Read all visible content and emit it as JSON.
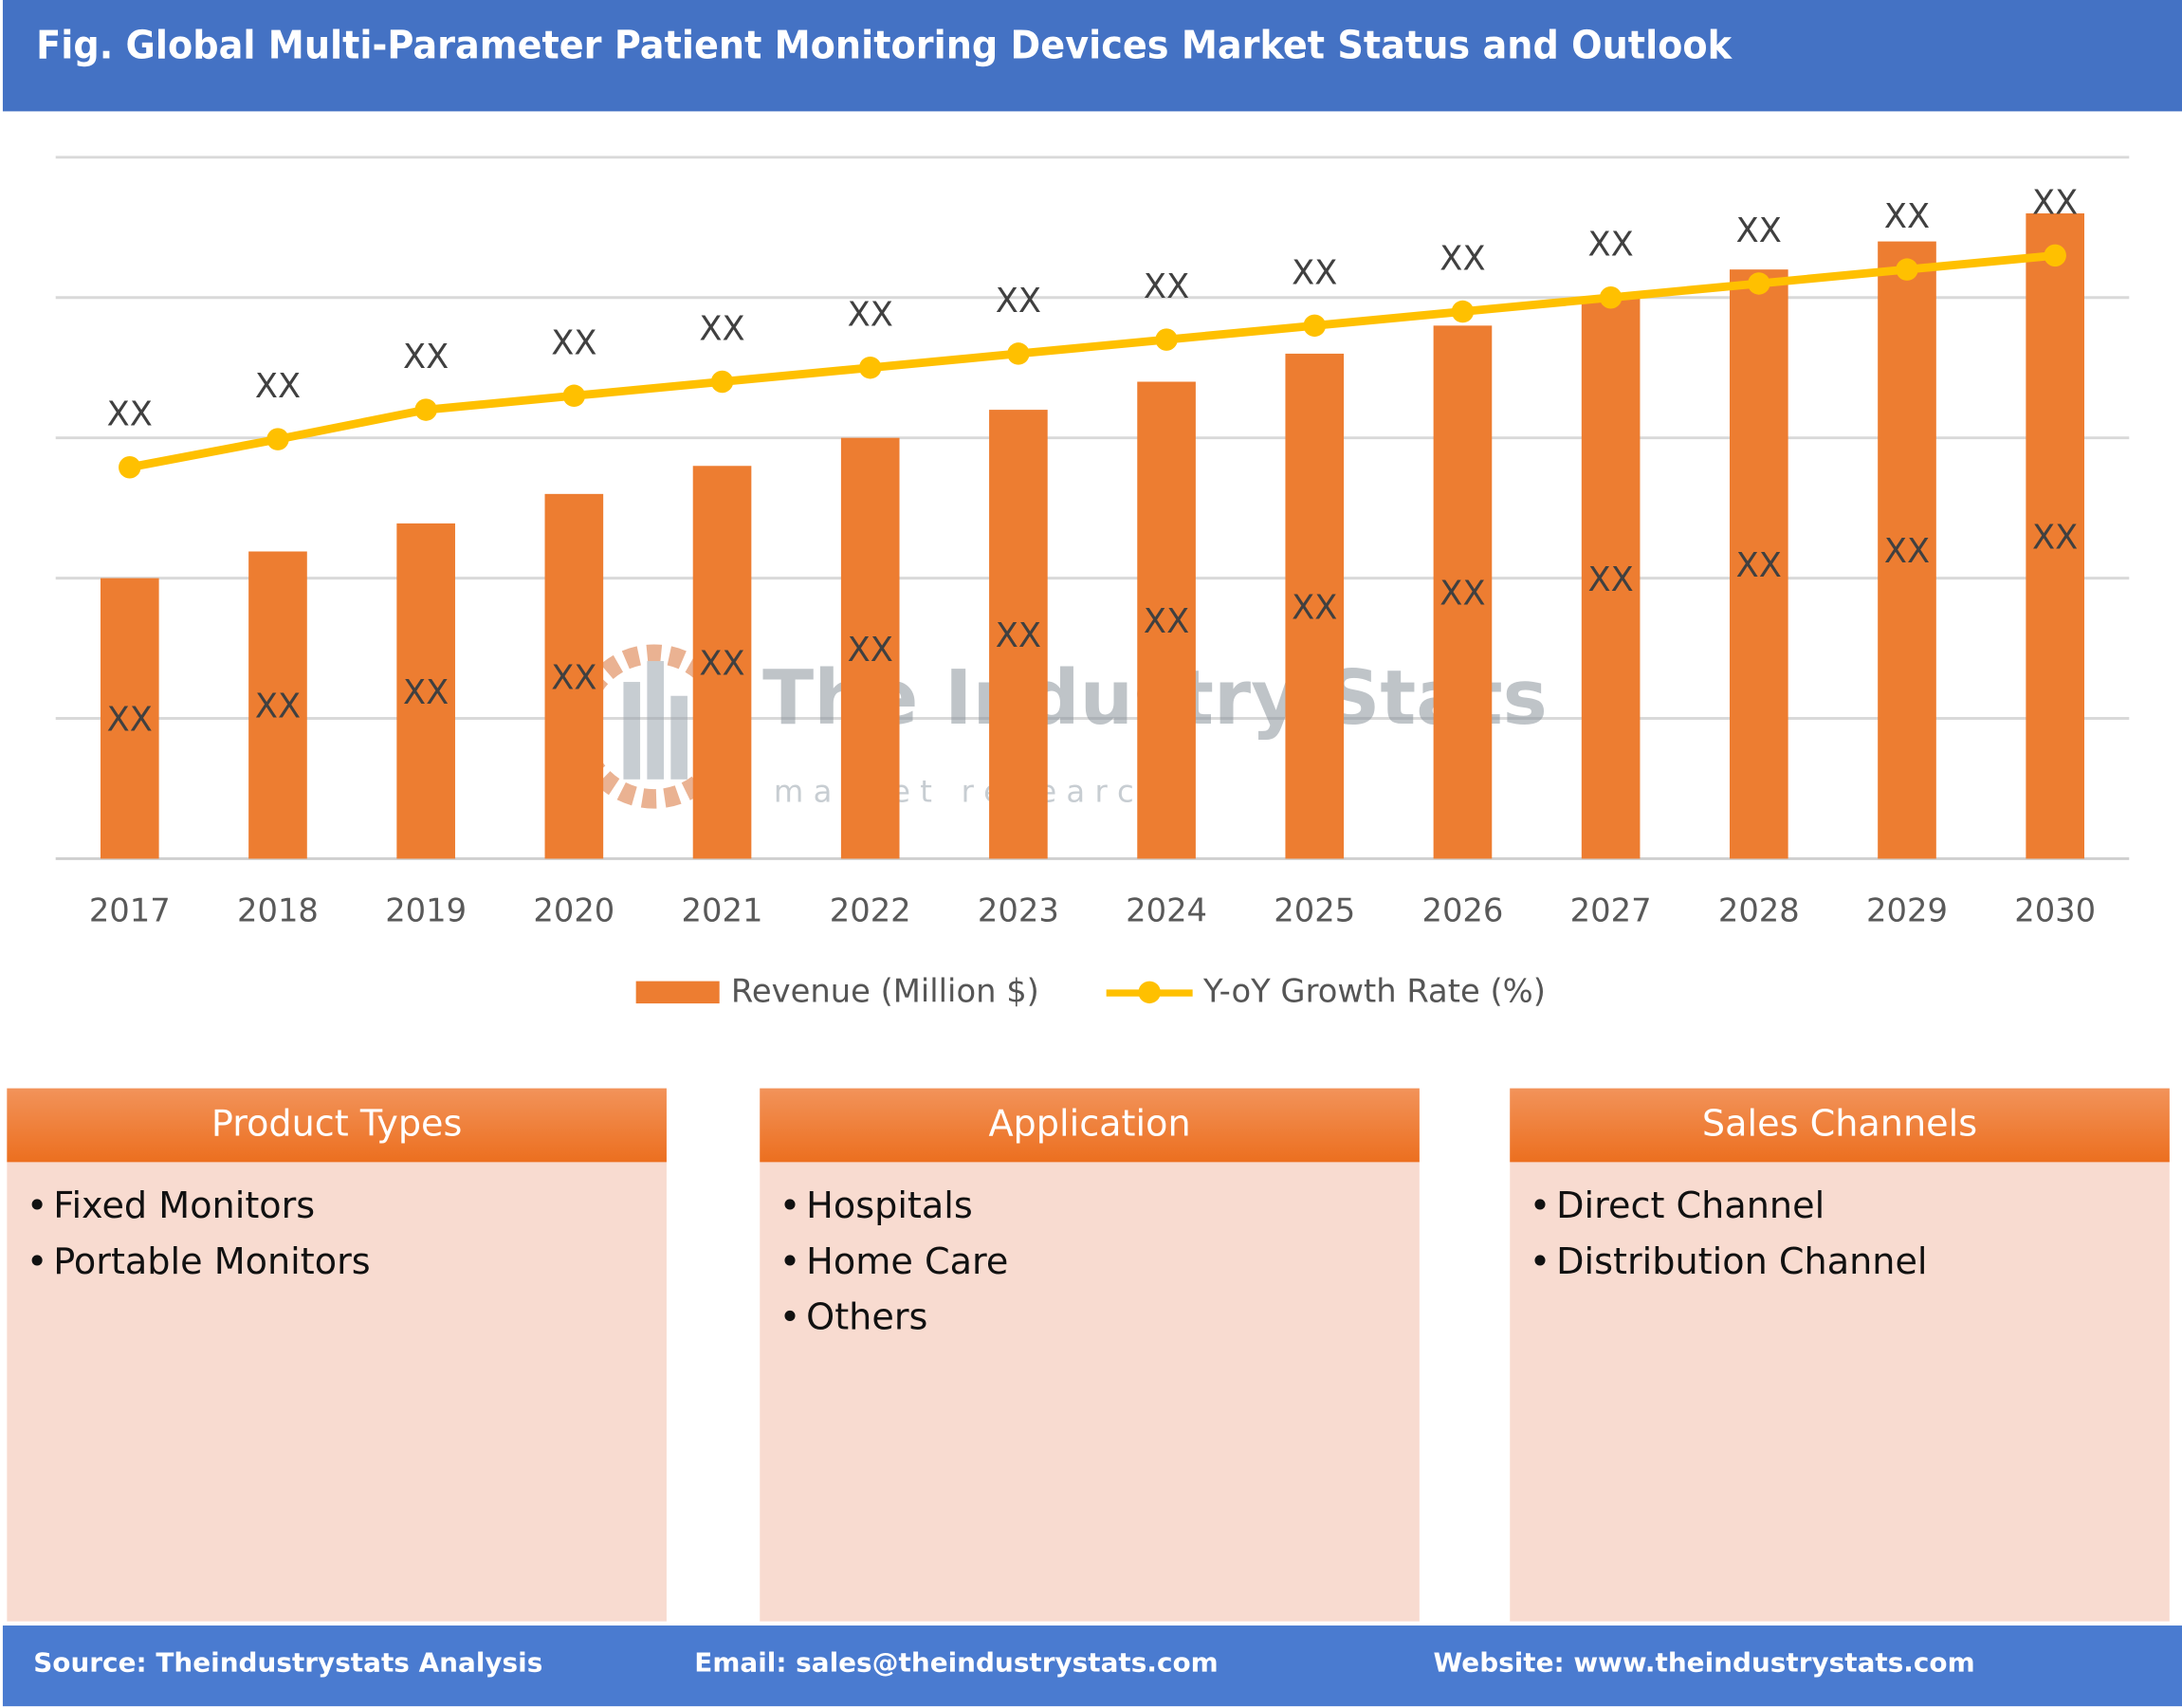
{
  "title": "Fig. Global Multi-Parameter Patient Monitoring Devices Market Status and Outlook",
  "chart_data": {
    "type": "bar+line",
    "categories": [
      "2017",
      "2018",
      "2019",
      "2020",
      "2021",
      "2022",
      "2023",
      "2024",
      "2025",
      "2026",
      "2027",
      "2028",
      "2029",
      "2030"
    ],
    "series": [
      {
        "name": "Revenue (Million $)",
        "type": "bar",
        "color": "#ed7d31",
        "values": [
          2.0,
          2.19,
          2.39,
          2.6,
          2.8,
          3.0,
          3.2,
          3.4,
          3.6,
          3.8,
          4.0,
          4.2,
          4.4,
          4.6
        ],
        "data_labels": [
          "XX",
          "XX",
          "XX",
          "XX",
          "XX",
          "XX",
          "XX",
          "XX",
          "XX",
          "XX",
          "XX",
          "XX",
          "XX",
          "XX"
        ]
      },
      {
        "name": "Y-oY Growth Rate (%)",
        "type": "line",
        "color": "#ffc000",
        "values": [
          2.79,
          2.99,
          3.2,
          3.3,
          3.4,
          3.5,
          3.6,
          3.7,
          3.8,
          3.9,
          4.0,
          4.1,
          4.2,
          4.3
        ],
        "data_labels": [
          "XX",
          "XX",
          "XX",
          "XX",
          "XX",
          "XX",
          "XX",
          "XX",
          "XX",
          "XX",
          "XX",
          "XX",
          "XX",
          "XX"
        ]
      }
    ],
    "ylim": [
      0,
      5
    ],
    "grid": true,
    "y_tick_labels_shown": false,
    "legend_placement": "bottom"
  },
  "watermark": {
    "name": "The Industry Stats",
    "tagline": "m a r k e t   r e s e a r c h"
  },
  "panels": [
    {
      "title": "Product Types",
      "items": [
        "Fixed Monitors",
        "Portable Monitors"
      ]
    },
    {
      "title": "Application",
      "items": [
        "Hospitals",
        "Home Care",
        "Others"
      ]
    },
    {
      "title": "Sales Channels",
      "items": [
        "Direct Channel",
        "Distribution Channel"
      ]
    }
  ],
  "footer": {
    "source": "Source: Theindustrystats Analysis",
    "email": "Email: sales@theindustrystats.com",
    "website": "Website: www.theindustrystats.com"
  }
}
